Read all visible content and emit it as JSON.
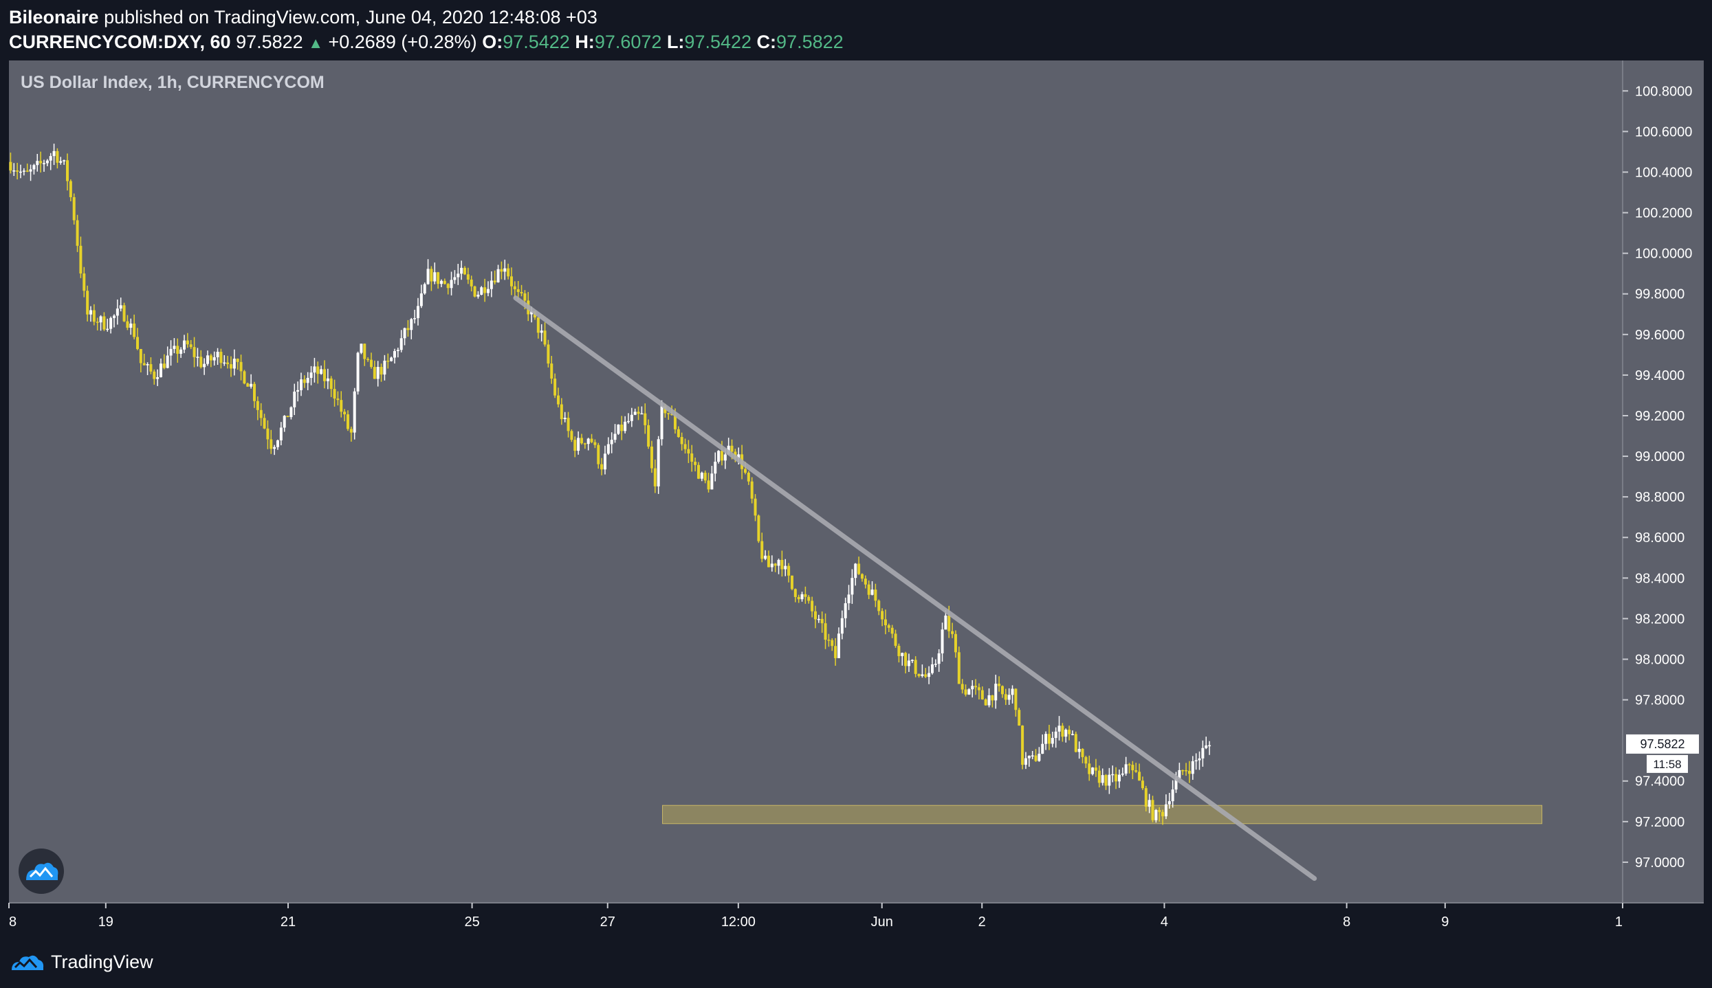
{
  "header": {
    "author": "Bileonaire",
    "published_text": "published on TradingView.com, June 04, 2020 12:48:08 +03",
    "symbol": "CURRENCYCOM:DXY, 60",
    "last": "97.5822",
    "change": "+0.2689 (+0.28%)",
    "o_label": "O:",
    "o_val": "97.5422",
    "h_label": "H:",
    "h_val": "97.6072",
    "l_label": "L:",
    "l_val": "97.5422",
    "c_label": "C:",
    "c_val": "97.5822"
  },
  "chart_title": "US Dollar Index, 1h, CURRENCYCOM",
  "price_tag": "97.5822",
  "countdown": "11:58",
  "footer": {
    "brand": "TradingView"
  },
  "colors": {
    "background": "#131722",
    "plot_area": "#5d606b",
    "bull_candle": "#ffffff",
    "bear_candle": "#e6d22a",
    "trendline": "#a8aab0",
    "support_zone": "#b3a45a"
  },
  "chart_data": {
    "type": "candlestick",
    "title": "US Dollar Index, 1h, CURRENCYCOM",
    "ylim": [
      96.8,
      100.95
    ],
    "y_ticks": [
      100.8,
      100.6,
      100.4,
      100.2,
      100.0,
      99.8,
      99.6,
      99.4,
      99.2,
      99.0,
      98.8,
      98.6,
      98.4,
      98.2,
      98.0,
      97.8,
      97.4,
      97.2,
      97.0
    ],
    "y_tick_labels": [
      "100.8000",
      "100.6000",
      "100.4000",
      "100.2000",
      "100.0000",
      "99.8000",
      "99.6000",
      "99.4000",
      "99.2000",
      "99.0000",
      "98.8000",
      "98.6000",
      "98.4000",
      "98.2000",
      "98.0000",
      "97.8000",
      "97.4000",
      "97.2000",
      "97.0000"
    ],
    "x_tick_labels": [
      "8",
      "19",
      "21",
      "25",
      "27",
      "12:00",
      "Jun",
      "2",
      "4",
      "8",
      "9",
      "1"
    ],
    "x_tick_pos": [
      0,
      0.06,
      0.173,
      0.287,
      0.371,
      0.452,
      0.541,
      0.603,
      0.716,
      0.829,
      0.89,
      1.0
    ],
    "path": [
      [
        0.0,
        100.45
      ],
      [
        0.01,
        100.38
      ],
      [
        0.02,
        100.44
      ],
      [
        0.028,
        100.5
      ],
      [
        0.035,
        100.42
      ],
      [
        0.04,
        100.2
      ],
      [
        0.044,
        99.95
      ],
      [
        0.048,
        99.7
      ],
      [
        0.06,
        99.65
      ],
      [
        0.07,
        99.72
      ],
      [
        0.078,
        99.6
      ],
      [
        0.082,
        99.45
      ],
      [
        0.09,
        99.4
      ],
      [
        0.1,
        99.5
      ],
      [
        0.11,
        99.55
      ],
      [
        0.12,
        99.45
      ],
      [
        0.13,
        99.5
      ],
      [
        0.14,
        99.45
      ],
      [
        0.15,
        99.35
      ],
      [
        0.158,
        99.15
      ],
      [
        0.163,
        99.05
      ],
      [
        0.17,
        99.15
      ],
      [
        0.18,
        99.35
      ],
      [
        0.19,
        99.42
      ],
      [
        0.2,
        99.35
      ],
      [
        0.207,
        99.2
      ],
      [
        0.212,
        99.1
      ],
      [
        0.217,
        99.55
      ],
      [
        0.225,
        99.4
      ],
      [
        0.235,
        99.45
      ],
      [
        0.245,
        99.6
      ],
      [
        0.253,
        99.7
      ],
      [
        0.26,
        99.9
      ],
      [
        0.27,
        99.85
      ],
      [
        0.28,
        99.9
      ],
      [
        0.29,
        99.8
      ],
      [
        0.3,
        99.88
      ],
      [
        0.307,
        99.95
      ],
      [
        0.314,
        99.8
      ],
      [
        0.32,
        99.75
      ],
      [
        0.33,
        99.6
      ],
      [
        0.34,
        99.25
      ],
      [
        0.35,
        99.05
      ],
      [
        0.36,
        99.1
      ],
      [
        0.367,
        98.95
      ],
      [
        0.375,
        99.1
      ],
      [
        0.385,
        99.18
      ],
      [
        0.393,
        99.2
      ],
      [
        0.4,
        98.85
      ],
      [
        0.405,
        99.25
      ],
      [
        0.41,
        99.2
      ],
      [
        0.418,
        99.05
      ],
      [
        0.425,
        98.95
      ],
      [
        0.433,
        98.85
      ],
      [
        0.44,
        99.0
      ],
      [
        0.448,
        99.05
      ],
      [
        0.455,
        98.95
      ],
      [
        0.46,
        98.8
      ],
      [
        0.465,
        98.55
      ],
      [
        0.47,
        98.45
      ],
      [
        0.478,
        98.5
      ],
      [
        0.485,
        98.35
      ],
      [
        0.493,
        98.3
      ],
      [
        0.5,
        98.2
      ],
      [
        0.507,
        98.1
      ],
      [
        0.512,
        98.0
      ],
      [
        0.518,
        98.3
      ],
      [
        0.525,
        98.45
      ],
      [
        0.533,
        98.35
      ],
      [
        0.54,
        98.25
      ],
      [
        0.548,
        98.1
      ],
      [
        0.555,
        98.0
      ],
      [
        0.562,
        97.95
      ],
      [
        0.57,
        97.9
      ],
      [
        0.575,
        98.0
      ],
      [
        0.58,
        98.2
      ],
      [
        0.585,
        98.1
      ],
      [
        0.59,
        97.85
      ],
      [
        0.597,
        97.85
      ],
      [
        0.605,
        97.8
      ],
      [
        0.612,
        97.85
      ],
      [
        0.618,
        97.8
      ],
      [
        0.623,
        97.85
      ],
      [
        0.628,
        97.5
      ],
      [
        0.635,
        97.5
      ],
      [
        0.642,
        97.6
      ],
      [
        0.65,
        97.65
      ],
      [
        0.657,
        97.65
      ],
      [
        0.662,
        97.55
      ],
      [
        0.668,
        97.45
      ],
      [
        0.675,
        97.42
      ],
      [
        0.682,
        97.4
      ],
      [
        0.69,
        97.42
      ],
      [
        0.695,
        97.5
      ],
      [
        0.7,
        97.4
      ],
      [
        0.705,
        97.3
      ],
      [
        0.71,
        97.22
      ],
      [
        0.715,
        97.25
      ],
      [
        0.72,
        97.35
      ],
      [
        0.727,
        97.45
      ],
      [
        0.734,
        97.48
      ],
      [
        0.74,
        97.55
      ],
      [
        0.745,
        97.58
      ]
    ],
    "trendline": [
      [
        0.314,
        99.78
      ],
      [
        0.809,
        96.92
      ]
    ],
    "support_zone": {
      "x": [
        0.405,
        0.95
      ],
      "y": [
        97.19,
        97.28
      ]
    }
  }
}
